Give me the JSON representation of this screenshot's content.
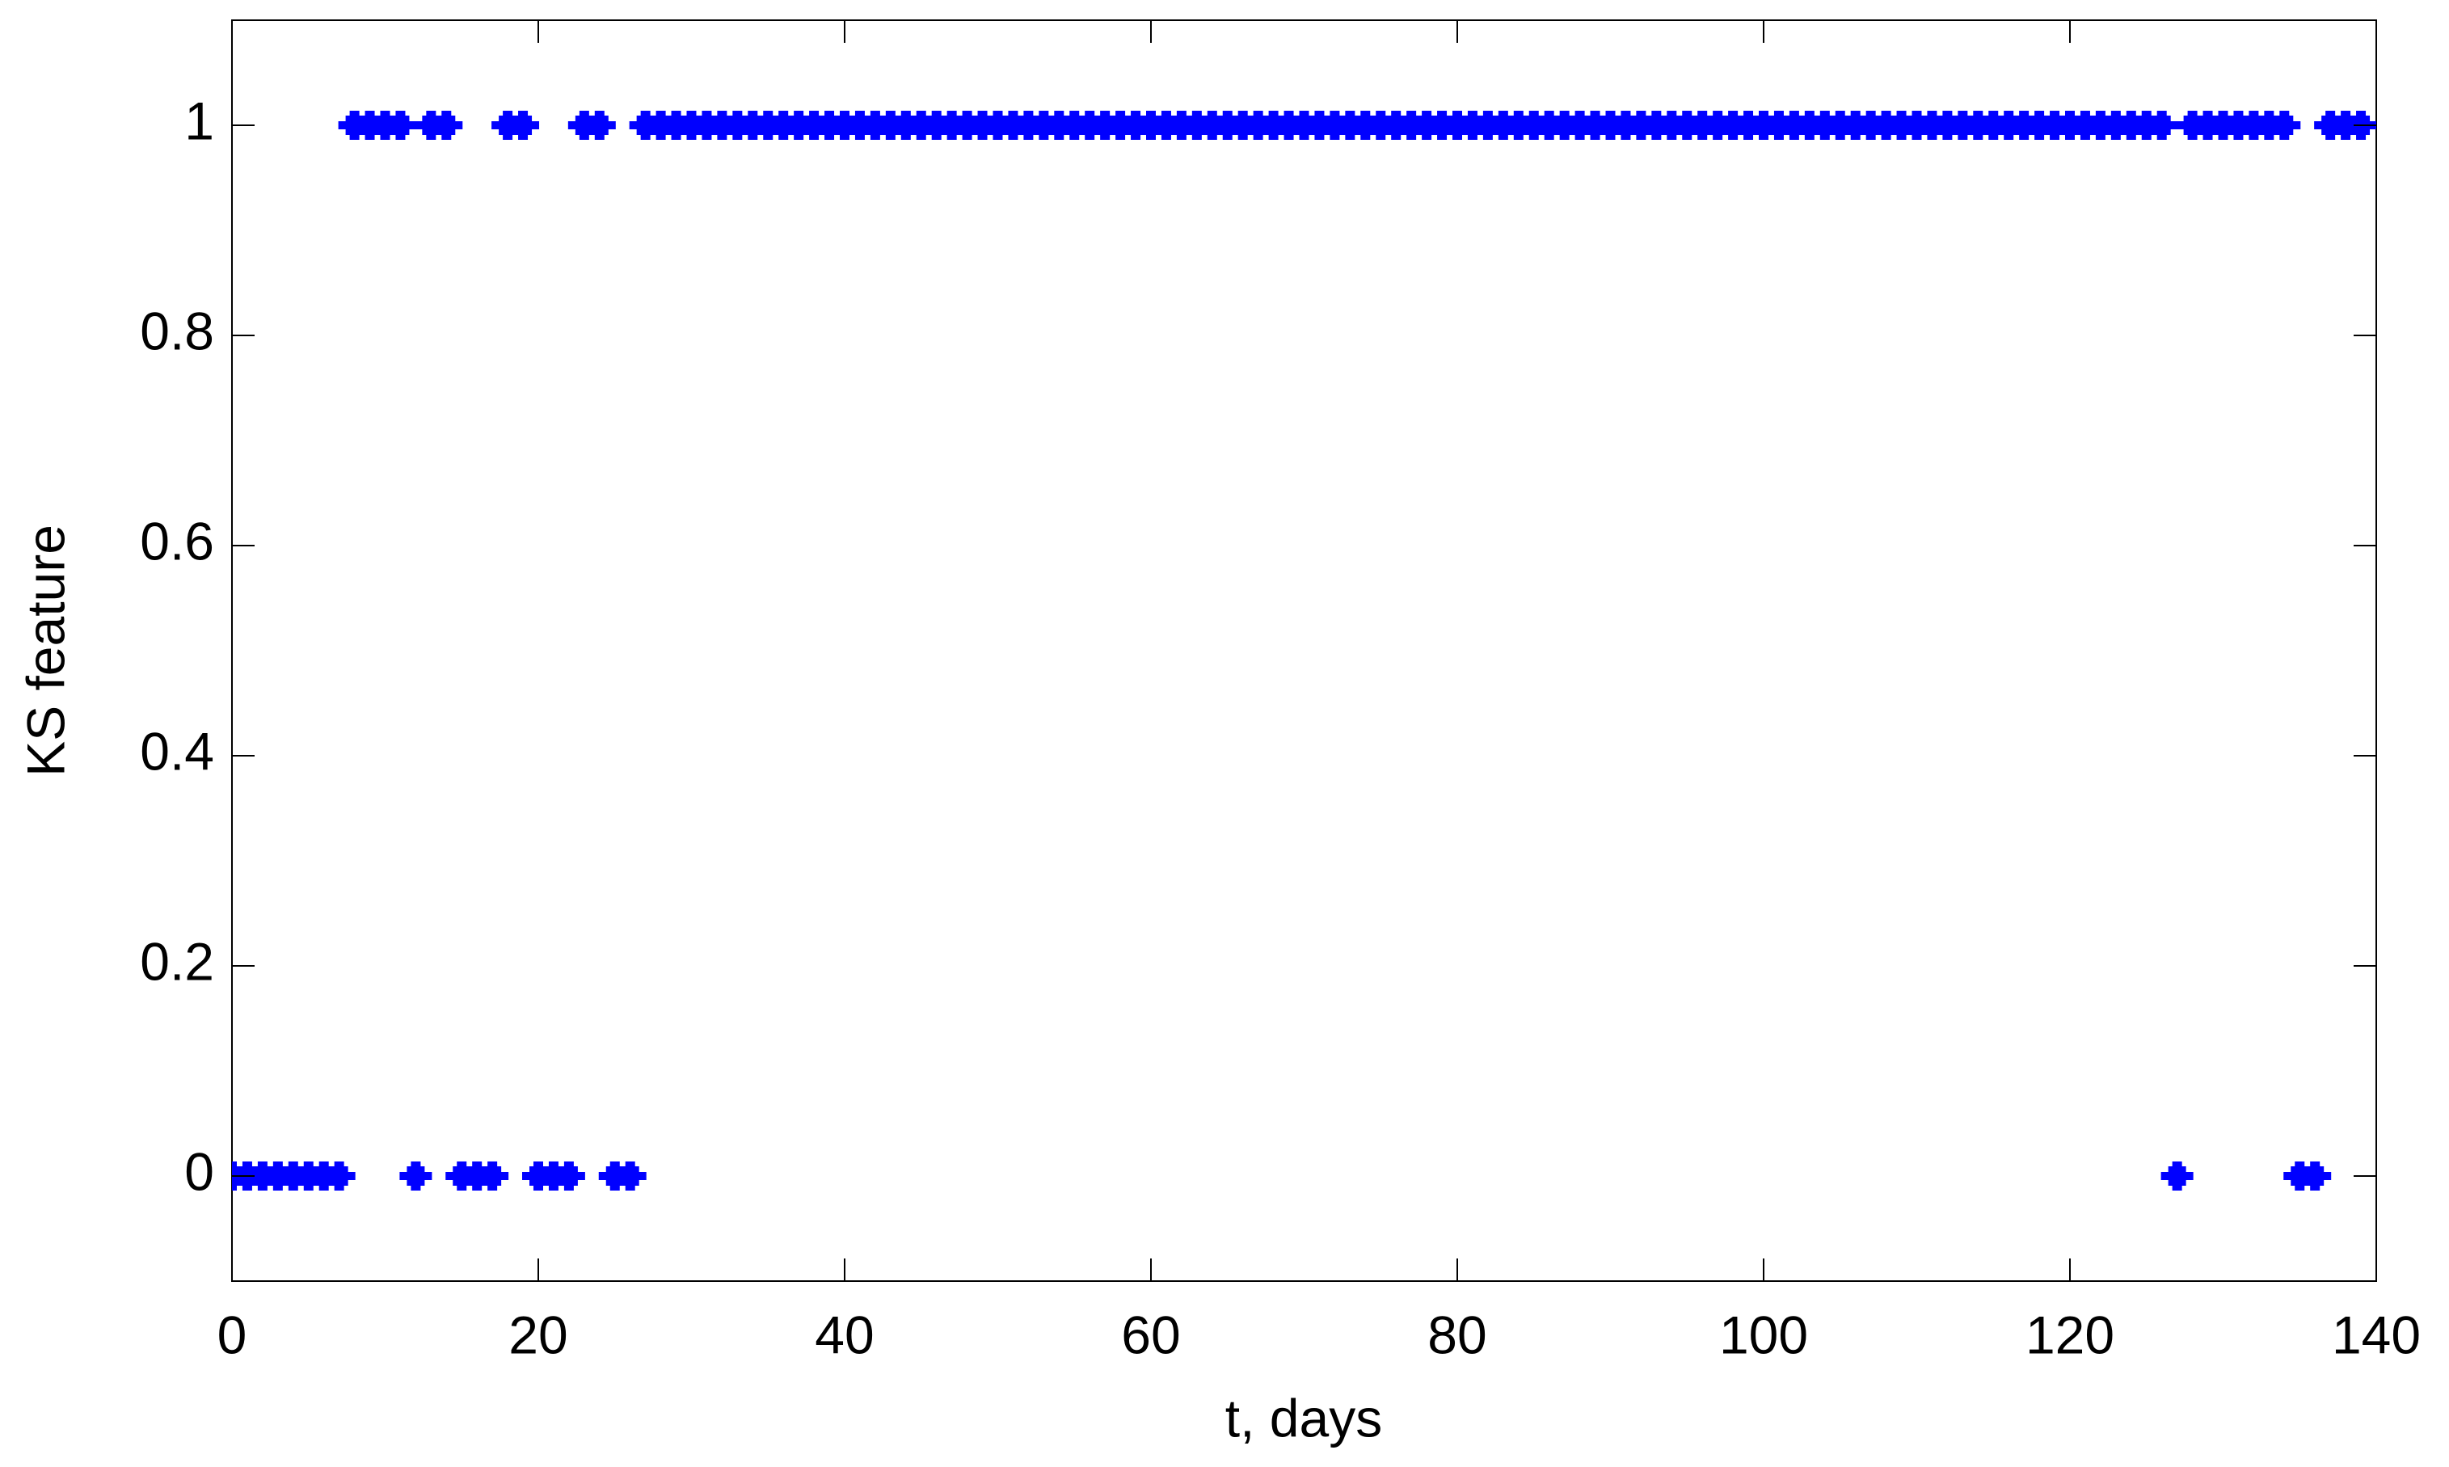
{
  "chart_data": {
    "type": "scatter",
    "xlabel": "t, days",
    "ylabel": "KS feature",
    "color": "#0000ff",
    "x": [
      0,
      1,
      2,
      3,
      4,
      5,
      6,
      7,
      8,
      9,
      10,
      11,
      12,
      13,
      14,
      15,
      16,
      17,
      18,
      19,
      20,
      21,
      22,
      23,
      24,
      25,
      26,
      27,
      28,
      29,
      30,
      31,
      32,
      33,
      34,
      35,
      36,
      37,
      38,
      39,
      40,
      41,
      42,
      43,
      44,
      45,
      46,
      47,
      48,
      49,
      50,
      51,
      52,
      53,
      54,
      55,
      56,
      57,
      58,
      59,
      60,
      61,
      62,
      63,
      64,
      65,
      66,
      67,
      68,
      69,
      70,
      71,
      72,
      73,
      74,
      75,
      76,
      77,
      78,
      79,
      80,
      81,
      82,
      83,
      84,
      85,
      86,
      87,
      88,
      89,
      90,
      91,
      92,
      93,
      94,
      95,
      96,
      97,
      98,
      99,
      100,
      101,
      102,
      103,
      104,
      105,
      106,
      107,
      108,
      109,
      110,
      111,
      112,
      113,
      114,
      115,
      116,
      117,
      118,
      119,
      120,
      121,
      122,
      123,
      124,
      125,
      126,
      127,
      128,
      129,
      130,
      131,
      132,
      133,
      134,
      135,
      136,
      137,
      138,
      139
    ],
    "values": [
      0,
      0,
      0,
      0,
      0,
      0,
      0,
      0,
      1,
      1,
      1,
      1,
      0,
      1,
      1,
      0,
      0,
      0,
      1,
      1,
      0,
      0,
      0,
      1,
      1,
      0,
      0,
      1,
      1,
      1,
      1,
      1,
      1,
      1,
      1,
      1,
      1,
      1,
      1,
      1,
      1,
      1,
      1,
      1,
      1,
      1,
      1,
      1,
      1,
      1,
      1,
      1,
      1,
      1,
      1,
      1,
      1,
      1,
      1,
      1,
      1,
      1,
      1,
      1,
      1,
      1,
      1,
      1,
      1,
      1,
      1,
      1,
      1,
      1,
      1,
      1,
      1,
      1,
      1,
      1,
      1,
      1,
      1,
      1,
      1,
      1,
      1,
      1,
      1,
      1,
      1,
      1,
      1,
      1,
      1,
      1,
      1,
      1,
      1,
      1,
      1,
      1,
      1,
      1,
      1,
      1,
      1,
      1,
      1,
      1,
      1,
      1,
      1,
      1,
      1,
      1,
      1,
      1,
      1,
      1,
      1,
      1,
      1,
      1,
      1,
      1,
      1,
      0,
      1,
      1,
      1,
      1,
      1,
      1,
      1,
      0,
      0,
      1,
      1,
      1
    ],
    "xlim": [
      0,
      140
    ],
    "ylim": [
      -0.1,
      1.1
    ],
    "xticks": [
      0,
      20,
      40,
      60,
      80,
      100,
      120,
      140
    ],
    "yticks": [
      0,
      0.2,
      0.4,
      0.6,
      0.8,
      1
    ]
  }
}
